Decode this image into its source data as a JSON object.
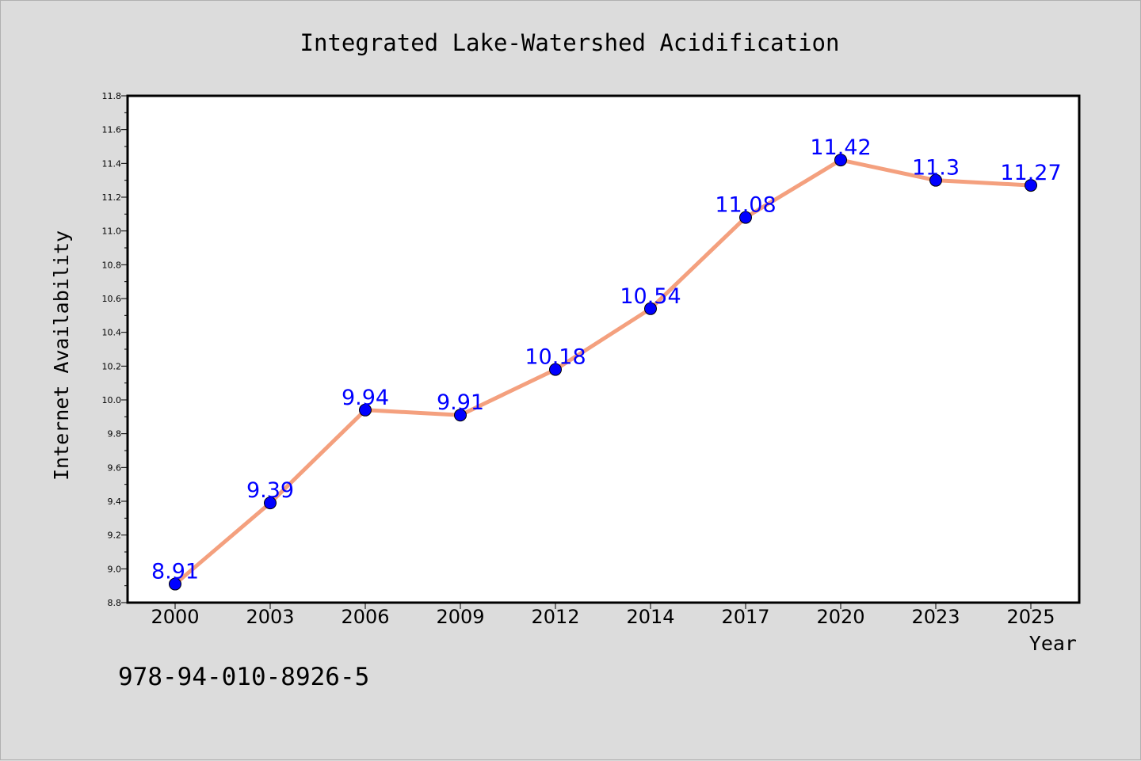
{
  "chart_data": {
    "type": "line",
    "title": "Integrated Lake-Watershed Acidification",
    "xlabel": "Year",
    "ylabel": "Internet Availability",
    "categories": [
      "2000",
      "2003",
      "2006",
      "2009",
      "2012",
      "2014",
      "2017",
      "2020",
      "2023",
      "2025"
    ],
    "series": [
      {
        "values": [
          8.91,
          9.39,
          9.94,
          9.91,
          10.18,
          10.54,
          11.08,
          11.42,
          11.3,
          11.27
        ],
        "labels": [
          "8.91",
          "9.39",
          "9.94",
          "9.91",
          "10.18",
          "10.54",
          "11.08",
          "11.42",
          "11.3",
          "11.27"
        ],
        "line_color": "#f4a07e",
        "marker_color": "#0000ff",
        "label_color": "#0000ff"
      }
    ],
    "ylim": [
      8.8,
      11.8
    ],
    "yticks": [
      "8.8",
      "9.0",
      "9.2",
      "9.4",
      "9.6",
      "9.8",
      "10.0",
      "10.2",
      "10.4",
      "10.6",
      "10.8",
      "11.0",
      "11.2",
      "11.4",
      "11.6",
      "11.8"
    ],
    "grid": false,
    "legend": "none"
  },
  "footer": {
    "isbn": "978-94-010-8926-5"
  },
  "colors": {
    "background": "#dcdcdc",
    "plot_area": "#ffffff",
    "axis": "#000000"
  }
}
